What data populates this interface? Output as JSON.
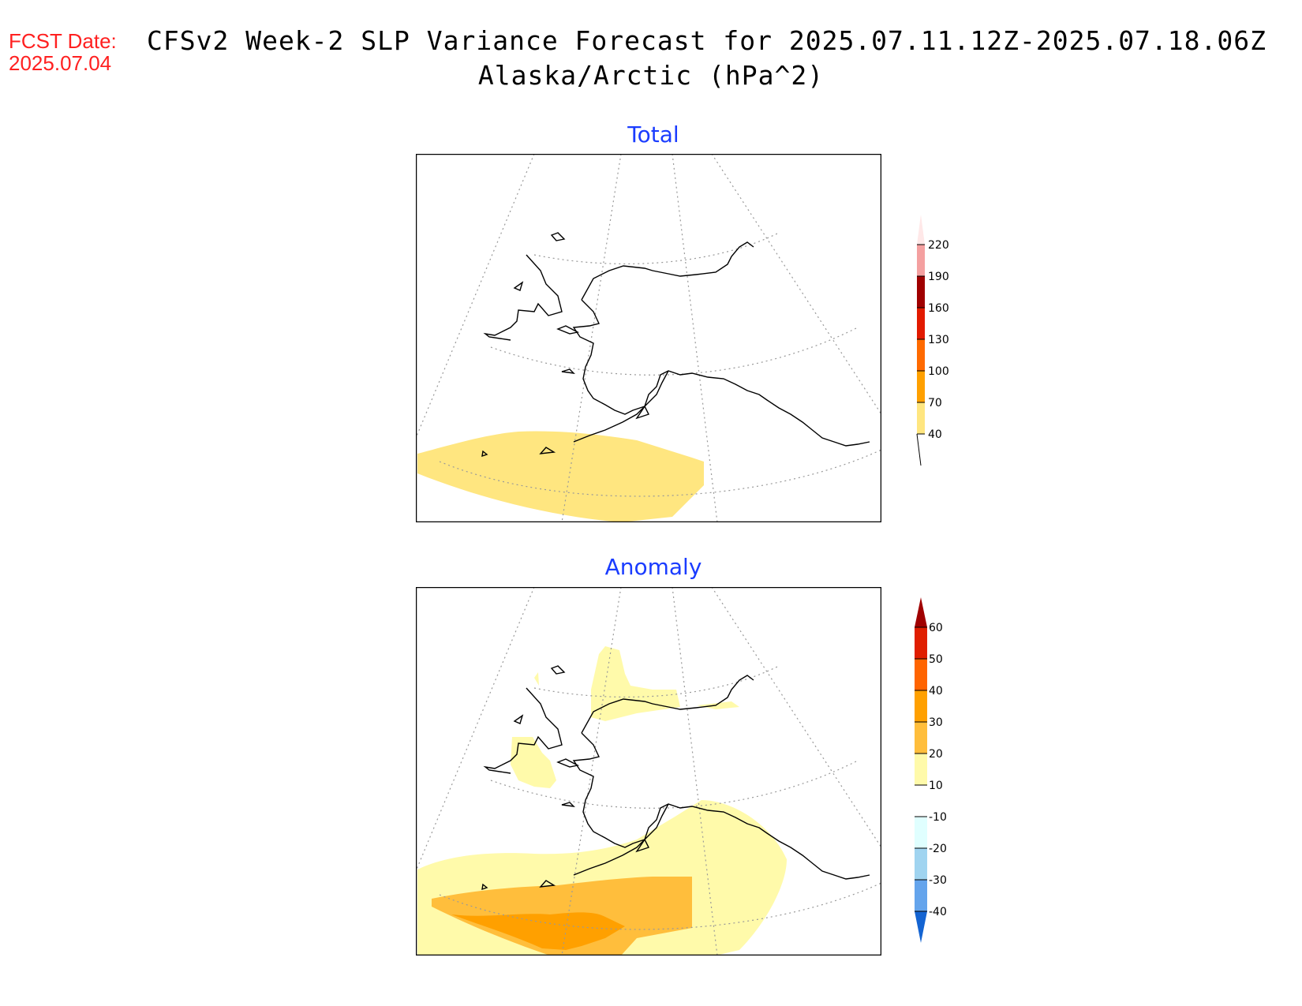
{
  "header": {
    "fcst_label": "FCST Date:",
    "fcst_date": "2025.07.04",
    "title_line1": "CFSv2 Week-2 SLP Variance Forecast for 2025.07.11.12Z-2025.07.18.06Z",
    "title_line2": "Alaska/Arctic (hPa^2)"
  },
  "panels": [
    {
      "title": "Total",
      "colorbar": {
        "labels": [
          "220",
          "190",
          "160",
          "130",
          "100",
          "70",
          "40"
        ],
        "colors": [
          "#ffe8e8",
          "#f4a0a0",
          "#a00000",
          "#e21a00",
          "#ff6a00",
          "#ffa000",
          "#ffe680"
        ]
      }
    },
    {
      "title": "Anomaly",
      "colorbar": {
        "labels": [
          "60",
          "50",
          "40",
          "30",
          "20",
          "10",
          "-10",
          "-20",
          "-30",
          "-40"
        ],
        "colors": [
          "#a00000",
          "#e01e00",
          "#ff6400",
          "#ffa000",
          "#ffbe3c",
          "#fffaaa",
          "#ffffff",
          "#e0ffff",
          "#a0d4f0",
          "#64a4ec",
          "#1464d2"
        ]
      }
    }
  ],
  "colors": {
    "total_fill": "#ffe680",
    "anom_light": "#fffaaa",
    "anom_mid": "#ffbe3c",
    "anom_dark": "#ffa000"
  }
}
